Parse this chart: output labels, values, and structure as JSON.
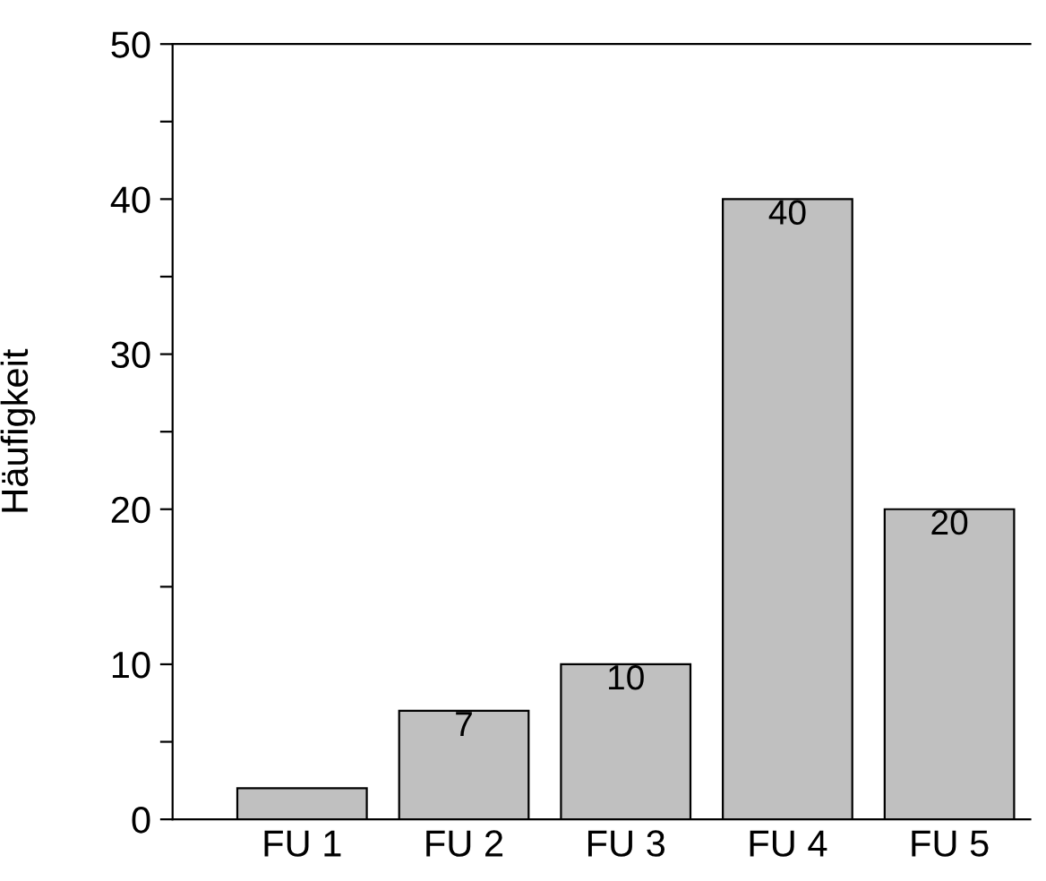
{
  "chart_data": {
    "type": "bar",
    "ylabel": "Häufigkeit",
    "categories": [
      "FU 1",
      "FU 2",
      "FU 3",
      "FU 4",
      "FU 5"
    ],
    "values": [
      2,
      7,
      10,
      40,
      20
    ],
    "value_labels": [
      null,
      "7",
      "10",
      "40",
      "20"
    ],
    "color": "#c0c0c0",
    "ylim": [
      0,
      50
    ],
    "yticks": [
      0,
      {
        "value": 5,
        "label": null
      },
      10,
      {
        "value": 15,
        "label": null
      },
      20,
      {
        "value": 25,
        "label": null
      },
      30,
      {
        "value": 35,
        "label": null
      },
      40,
      {
        "value": 45,
        "label": null
      },
      50
    ],
    "grid": false,
    "legend": false
  }
}
